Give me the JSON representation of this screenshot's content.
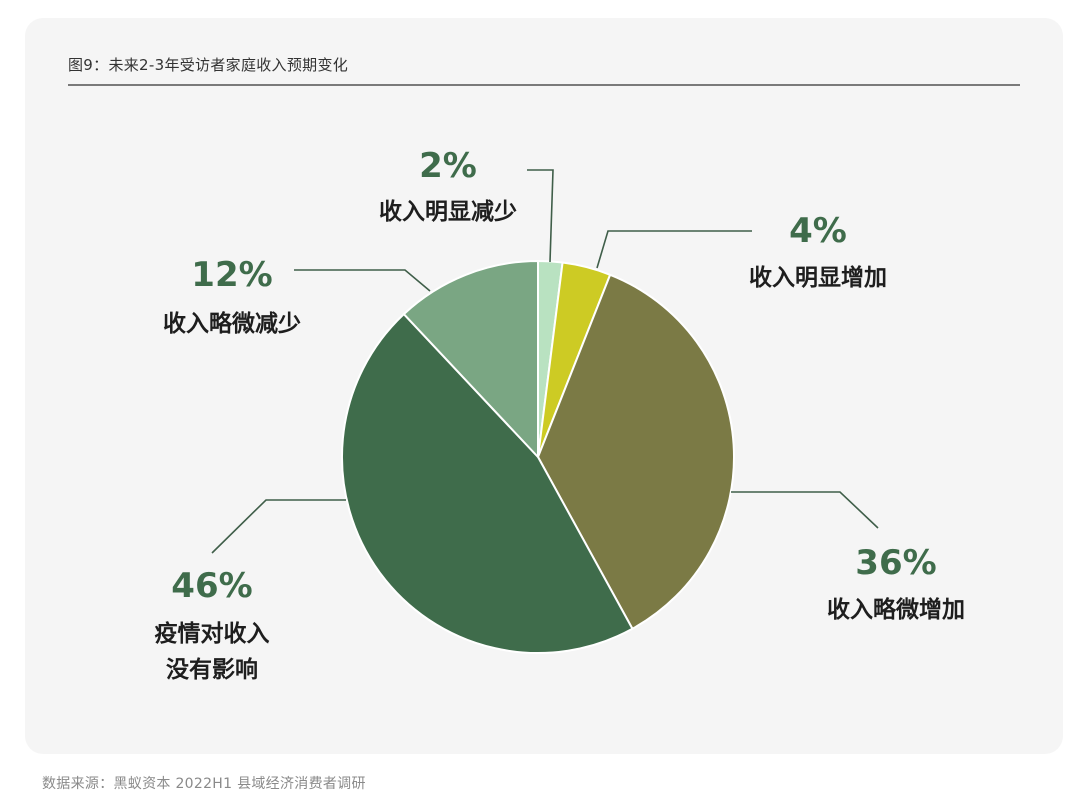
{
  "figure_title": "图9：未来2-3年受访者家庭收入预期变化",
  "source": "数据来源：黑蚁资本 2022H1 县域经济消费者调研",
  "chart_data": {
    "type": "pie",
    "title": "图9：未来2-3年受访者家庭收入预期变化",
    "slices": [
      {
        "label": "收入明显减少",
        "value": 2,
        "display": "2%",
        "color": "#b9e2c1"
      },
      {
        "label": "收入明显增加",
        "value": 4,
        "display": "4%",
        "color": "#cdcb24"
      },
      {
        "label": "收入略微增加",
        "value": 36,
        "display": "36%",
        "color": "#7b7a45"
      },
      {
        "label": "疫情对收入没有影响",
        "value": 46,
        "display": "46%",
        "color": "#3f6c4b"
      },
      {
        "label": "收入略微减少",
        "value": 12,
        "display": "12%",
        "color": "#7aa683"
      }
    ],
    "label_color": "#3f6c4b",
    "start_angle_deg": 0,
    "direction": "clockwise"
  }
}
